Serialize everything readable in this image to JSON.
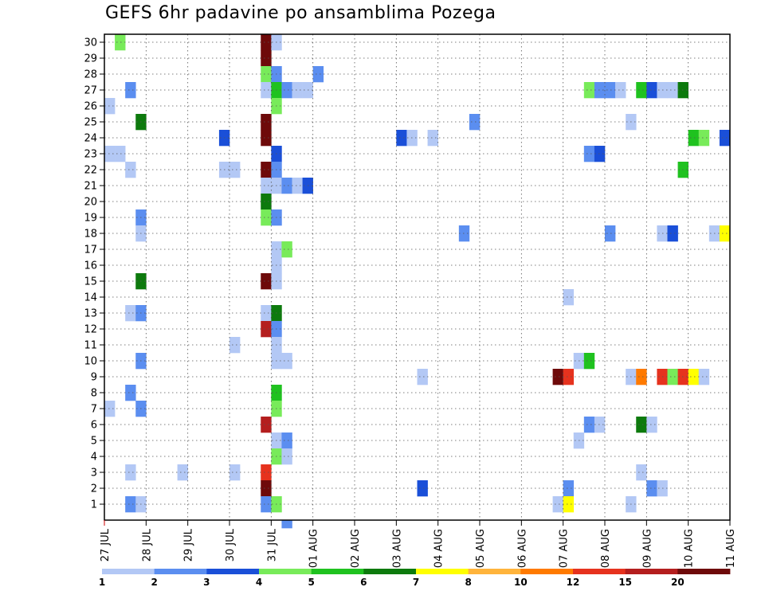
{
  "chart_data": {
    "type": "heatmap",
    "title": "GEFS 6hr padavine po ansamblima Pozega",
    "y_ticks": [
      "1",
      "2",
      "3",
      "4",
      "5",
      "6",
      "7",
      "8",
      "9",
      "10",
      "11",
      "12",
      "13",
      "14",
      "15",
      "16",
      "17",
      "18",
      "19",
      "20",
      "21",
      "22",
      "23",
      "24",
      "25",
      "26",
      "27",
      "28",
      "29",
      "30"
    ],
    "x_ticks": [
      "27 JUL",
      "28 JUL",
      "29 JUL",
      "30 JUL",
      "31 JUL",
      "01 AUG",
      "02 AUG",
      "03 AUG",
      "04 AUG",
      "05 AUG",
      "06 AUG",
      "07 AUG",
      "08 AUG",
      "09 AUG",
      "10 AUG",
      "11 AUG"
    ],
    "x_range_days": [
      0,
      15
    ],
    "steps_per_day": 4,
    "y_range": [
      0.5,
      30.5
    ],
    "grid": true,
    "colorbar": {
      "labels": [
        "1",
        "2",
        "3",
        "4",
        "5",
        "6",
        "7",
        "8",
        "10",
        "12",
        "15",
        "20"
      ],
      "colors": [
        "#b3c8f5",
        "#5b8ef0",
        "#1a4fd8",
        "#78eb5a",
        "#1fc21f",
        "#0d7a0d",
        "#ffff00",
        "#ffb43c",
        "#ff7a00",
        "#e6321e",
        "#b41e1e",
        "#6e0a0a"
      ]
    },
    "cells": [
      [
        1,
        30,
        3
      ],
      [
        15,
        30,
        11
      ],
      [
        16,
        30,
        0
      ],
      [
        15,
        29,
        11
      ],
      [
        15,
        28,
        3
      ],
      [
        16,
        28,
        1
      ],
      [
        20,
        28,
        1
      ],
      [
        2,
        27,
        1
      ],
      [
        15,
        27,
        0
      ],
      [
        16,
        27,
        4
      ],
      [
        17,
        27,
        1
      ],
      [
        18,
        27,
        0
      ],
      [
        19,
        27,
        0
      ],
      [
        46,
        27,
        3
      ],
      [
        47,
        27,
        1
      ],
      [
        48,
        27,
        1
      ],
      [
        49,
        27,
        0
      ],
      [
        51,
        27,
        4
      ],
      [
        52,
        27,
        2
      ],
      [
        53,
        27,
        0
      ],
      [
        54,
        27,
        0
      ],
      [
        55,
        27,
        5
      ],
      [
        0,
        26,
        0
      ],
      [
        16,
        26,
        3
      ],
      [
        3,
        25,
        5
      ],
      [
        15,
        25,
        11
      ],
      [
        35,
        25,
        1
      ],
      [
        50,
        25,
        0
      ],
      [
        11,
        24,
        2
      ],
      [
        15,
        24,
        11
      ],
      [
        28,
        24,
        2
      ],
      [
        29,
        24,
        0
      ],
      [
        31,
        24,
        0
      ],
      [
        56,
        24,
        4
      ],
      [
        57,
        24,
        3
      ],
      [
        59,
        24,
        2
      ],
      [
        0,
        23,
        0
      ],
      [
        1,
        23,
        0
      ],
      [
        16,
        23,
        2
      ],
      [
        46,
        23,
        1
      ],
      [
        47,
        23,
        2
      ],
      [
        2,
        22,
        0
      ],
      [
        11,
        22,
        0
      ],
      [
        12,
        22,
        0
      ],
      [
        15,
        22,
        11
      ],
      [
        16,
        22,
        1
      ],
      [
        55,
        22,
        4
      ],
      [
        15,
        21,
        0
      ],
      [
        16,
        21,
        0
      ],
      [
        17,
        21,
        1
      ],
      [
        18,
        21,
        0
      ],
      [
        19,
        21,
        2
      ],
      [
        15,
        20,
        5
      ],
      [
        3,
        19,
        1
      ],
      [
        15,
        19,
        3
      ],
      [
        16,
        19,
        1
      ],
      [
        3,
        18,
        0
      ],
      [
        34,
        18,
        1
      ],
      [
        48,
        18,
        1
      ],
      [
        53,
        18,
        0
      ],
      [
        54,
        18,
        2
      ],
      [
        58,
        18,
        0
      ],
      [
        59,
        18,
        6
      ],
      [
        16,
        17,
        0
      ],
      [
        17,
        17,
        3
      ],
      [
        16,
        16,
        0
      ],
      [
        3,
        15,
        5
      ],
      [
        15,
        15,
        11
      ],
      [
        16,
        15,
        0
      ],
      [
        44,
        14,
        0
      ],
      [
        2,
        13,
        0
      ],
      [
        3,
        13,
        1
      ],
      [
        15,
        13,
        0
      ],
      [
        16,
        13,
        5
      ],
      [
        15,
        12,
        10
      ],
      [
        16,
        12,
        1
      ],
      [
        12,
        11,
        0
      ],
      [
        16,
        11,
        0
      ],
      [
        3,
        10,
        1
      ],
      [
        16,
        10,
        0
      ],
      [
        17,
        10,
        0
      ],
      [
        45,
        10,
        0
      ],
      [
        46,
        10,
        4
      ],
      [
        30,
        9,
        0
      ],
      [
        43,
        9,
        11
      ],
      [
        44,
        9,
        9
      ],
      [
        50,
        9,
        0
      ],
      [
        51,
        9,
        8
      ],
      [
        53,
        9,
        9
      ],
      [
        54,
        9,
        3
      ],
      [
        55,
        9,
        9
      ],
      [
        56,
        9,
        6
      ],
      [
        57,
        9,
        0
      ],
      [
        2,
        8,
        1
      ],
      [
        16,
        8,
        4
      ],
      [
        0,
        7,
        0
      ],
      [
        3,
        7,
        1
      ],
      [
        16,
        7,
        3
      ],
      [
        15,
        6,
        10
      ],
      [
        46,
        6,
        1
      ],
      [
        47,
        6,
        0
      ],
      [
        51,
        6,
        5
      ],
      [
        52,
        6,
        0
      ],
      [
        16,
        5,
        0
      ],
      [
        17,
        5,
        1
      ],
      [
        45,
        5,
        0
      ],
      [
        16,
        4,
        3
      ],
      [
        17,
        4,
        0
      ],
      [
        2,
        3,
        0
      ],
      [
        7,
        3,
        0
      ],
      [
        12,
        3,
        0
      ],
      [
        15,
        3,
        9
      ],
      [
        51,
        3,
        0
      ],
      [
        15,
        2,
        11
      ],
      [
        30,
        2,
        2
      ],
      [
        44,
        2,
        1
      ],
      [
        52,
        2,
        1
      ],
      [
        53,
        2,
        0
      ],
      [
        2,
        1,
        1
      ],
      [
        3,
        1,
        0
      ],
      [
        15,
        1,
        1
      ],
      [
        16,
        1,
        3
      ],
      [
        43,
        1,
        0
      ],
      [
        44,
        1,
        6
      ],
      [
        50,
        1,
        0
      ],
      [
        17,
        0,
        1
      ]
    ]
  }
}
